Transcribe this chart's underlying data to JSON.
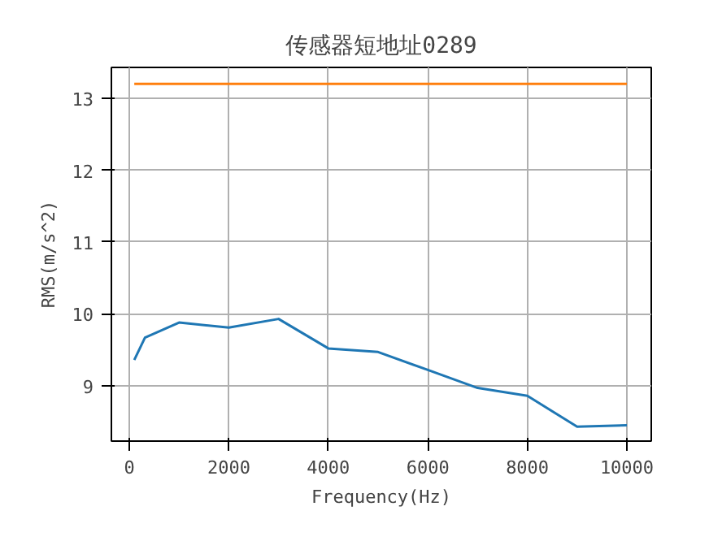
{
  "chart_data": {
    "type": "line",
    "title": "传感器短地址0289",
    "xlabel": "Frequency(Hz)",
    "ylabel": "RMS(m/s^2)",
    "xlim": [
      -360,
      10490
    ],
    "ylim": [
      8.23,
      13.43
    ],
    "xticks": [
      0,
      2000,
      4000,
      6000,
      8000,
      10000
    ],
    "yticks": [
      9,
      10,
      11,
      12,
      13
    ],
    "grid": true,
    "series": [
      {
        "color": "#1f77b4",
        "x": [
          100,
          315,
          1000,
          2000,
          3000,
          4000,
          5000,
          6000,
          7000,
          8000,
          9000,
          10000
        ],
        "values": [
          9.36,
          9.67,
          9.88,
          9.81,
          9.93,
          9.52,
          9.47,
          9.22,
          8.97,
          8.86,
          8.43,
          8.45
        ]
      },
      {
        "color": "#ff7f0e",
        "x": [
          100,
          10000
        ],
        "values": [
          13.2,
          13.2
        ]
      }
    ]
  }
}
